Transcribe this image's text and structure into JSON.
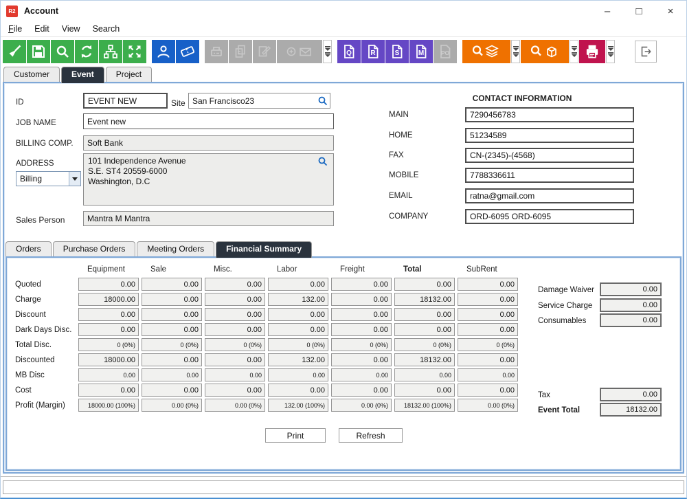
{
  "window": {
    "logo": "R2",
    "title": "Account",
    "minimize": "–",
    "maximize": "□",
    "close": "×"
  },
  "menu": {
    "file": "File",
    "edit": "Edit",
    "view": "View",
    "search": "Search"
  },
  "toolbar": {
    "q": "Q",
    "r": "R",
    "s": "S",
    "m": "M",
    "po": "PO"
  },
  "tabs": {
    "customer": "Customer",
    "event": "Event",
    "project": "Project"
  },
  "form": {
    "id": {
      "label": "ID",
      "value": "EVENT NEW"
    },
    "site": {
      "label": "Site",
      "value": "San Francisco23"
    },
    "job_name": {
      "label": "JOB NAME",
      "value": "Event new"
    },
    "billing_comp": {
      "label": "BILLING COMP.",
      "value": "Soft Bank"
    },
    "address": {
      "label": "ADDRESS",
      "type": "Billing",
      "lines": [
        "101 Independence Avenue",
        "S.E. ST4 20559-6000",
        "Washington, D.C"
      ]
    },
    "sales_person": {
      "label": "Sales Person",
      "value": "Mantra M Mantra"
    }
  },
  "contact": {
    "title": "CONTACT INFORMATION",
    "fields": [
      {
        "label": "MAIN",
        "value": "7290456783"
      },
      {
        "label": "HOME",
        "value": "51234589"
      },
      {
        "label": "FAX",
        "value": "CN-(2345)-(4568)"
      },
      {
        "label": "MOBILE",
        "value": "7788336611"
      },
      {
        "label": "EMAIL",
        "value": "ratna@gmail.com"
      },
      {
        "label": "COMPANY",
        "value": "ORD-6095 ORD-6095"
      }
    ]
  },
  "subtabs": {
    "orders": "Orders",
    "purchase_orders": "Purchase Orders",
    "meeting_orders": "Meeting Orders",
    "financial_summary": "Financial Summary"
  },
  "financial": {
    "columns": [
      {
        "label": "Equipment",
        "bold": false
      },
      {
        "label": "Sale",
        "bold": false
      },
      {
        "label": "Misc.",
        "bold": false
      },
      {
        "label": "Labor",
        "bold": false
      },
      {
        "label": "Freight",
        "bold": false
      },
      {
        "label": "Total",
        "bold": true
      },
      {
        "label": "SubRent",
        "bold": false
      }
    ],
    "rows": [
      {
        "label": "Quoted",
        "small": false,
        "values": [
          "0.00",
          "0.00",
          "0.00",
          "0.00",
          "0.00",
          "0.00",
          "0.00"
        ]
      },
      {
        "label": "Charge",
        "small": false,
        "values": [
          "18000.00",
          "0.00",
          "0.00",
          "132.00",
          "0.00",
          "18132.00",
          "0.00"
        ]
      },
      {
        "label": "Discount",
        "small": false,
        "values": [
          "0.00",
          "0.00",
          "0.00",
          "0.00",
          "0.00",
          "0.00",
          "0.00"
        ]
      },
      {
        "label": "Dark Days Disc.",
        "small": false,
        "values": [
          "0.00",
          "0.00",
          "0.00",
          "0.00",
          "0.00",
          "0.00",
          "0.00"
        ]
      },
      {
        "label": "Total Disc.",
        "small": true,
        "values": [
          "0 (0%)",
          "0 (0%)",
          "0 (0%)",
          "0 (0%)",
          "0 (0%)",
          "0 (0%)",
          "0 (0%)"
        ]
      },
      {
        "label": "Discounted",
        "small": false,
        "values": [
          "18000.00",
          "0.00",
          "0.00",
          "132.00",
          "0.00",
          "18132.00",
          "0.00"
        ]
      },
      {
        "label": "MB Disc",
        "small": true,
        "values": [
          "0.00",
          "0.00",
          "0.00",
          "0.00",
          "0.00",
          "0.00",
          "0.00"
        ]
      },
      {
        "label": "Cost",
        "small": false,
        "values": [
          "0.00",
          "0.00",
          "0.00",
          "0.00",
          "0.00",
          "0.00",
          "0.00"
        ]
      },
      {
        "label": "Profit (Margin)",
        "small": true,
        "values": [
          "18000.00 (100%)",
          "0.00 (0%)",
          "0.00 (0%)",
          "132.00 (100%)",
          "0.00 (0%)",
          "18132.00 (100%)",
          "0.00 (0%)"
        ]
      }
    ]
  },
  "side": {
    "damage_waiver": {
      "label": "Damage Waiver",
      "value": "0.00"
    },
    "service_charge": {
      "label": "Service Charge",
      "value": "0.00"
    },
    "consumables": {
      "label": "Consumables",
      "value": "0.00"
    },
    "tax": {
      "label": "Tax",
      "value": "0.00"
    },
    "event_total": {
      "label": "Event Total",
      "value": "18132.00"
    }
  },
  "buttons": {
    "print": "Print",
    "refresh": "Refresh"
  },
  "colors": {
    "green": "#3cae4c",
    "blue": "#1760c8",
    "purple": "#6547c5",
    "orange": "#ef7100",
    "crimson": "#c0134e",
    "logo_red": "#e23a2e",
    "active_tab": "#2a333e",
    "panel_border": "#7fa8d7"
  }
}
